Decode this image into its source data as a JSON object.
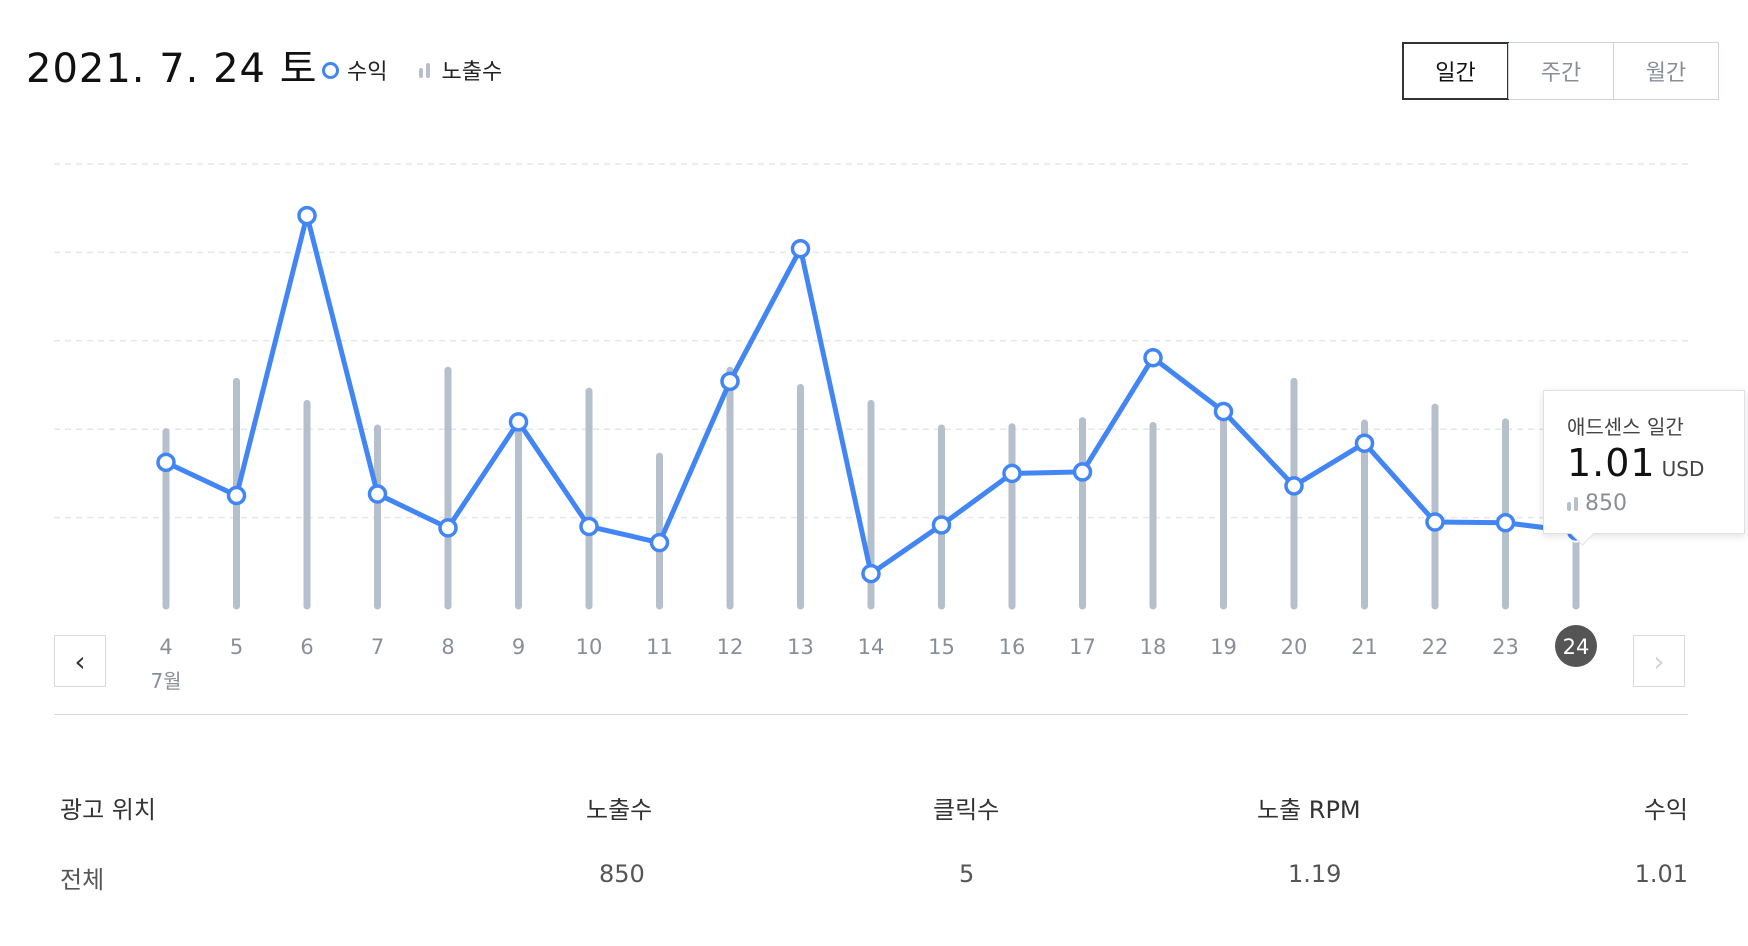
{
  "header": {
    "date_title": "2021. 7. 24 토",
    "legend": {
      "revenue_label": "수익",
      "impressions_label": "노출수"
    },
    "period_tabs": [
      {
        "label": "일간",
        "active": true
      },
      {
        "label": "주간",
        "active": false
      },
      {
        "label": "월간",
        "active": false
      }
    ]
  },
  "colors": {
    "revenue_line": "#4285f4",
    "impression_bar": "#b6bfcc",
    "selected_day_badge": "#555555"
  },
  "chart_data": {
    "type": "line",
    "x": [
      4,
      5,
      6,
      7,
      8,
      9,
      10,
      11,
      12,
      13,
      14,
      15,
      16,
      17,
      18,
      19,
      20,
      21,
      22,
      23,
      24
    ],
    "x_tick_labels": [
      "4",
      "5",
      "6",
      "7",
      "8",
      "9",
      "10",
      "11",
      "12",
      "13",
      "14",
      "15",
      "16",
      "17",
      "18",
      "19",
      "20",
      "21",
      "22",
      "23",
      "24"
    ],
    "month_label": "7월",
    "selected_x": 24,
    "grid": "horizontal-dashed",
    "series": [
      {
        "name": "수익",
        "kind": "line",
        "values": [
          1.95,
          1.5,
          5.3,
          1.52,
          1.06,
          2.5,
          1.08,
          0.86,
          3.05,
          4.85,
          0.44,
          1.1,
          1.8,
          1.82,
          3.37,
          2.64,
          1.63,
          2.21,
          1.14,
          1.13,
          1.01
        ]
      },
      {
        "name": "노출수",
        "kind": "bar",
        "values": [
          1420,
          1830,
          1650,
          1450,
          1920,
          1440,
          1750,
          1220,
          1920,
          1780,
          1650,
          1450,
          1460,
          1510,
          1470,
          1520,
          1830,
          1490,
          1620,
          1500,
          850
        ]
      }
    ]
  },
  "tooltip": {
    "title": "애드센스 일간",
    "value": "1.01",
    "unit": "USD",
    "impressions": "850"
  },
  "table": {
    "headers": [
      "광고 위치",
      "노출수",
      "클릭수",
      "노출 RPM",
      "수익"
    ],
    "rows": [
      [
        "전체",
        "850",
        "5",
        "1.19",
        "1.01"
      ]
    ]
  }
}
